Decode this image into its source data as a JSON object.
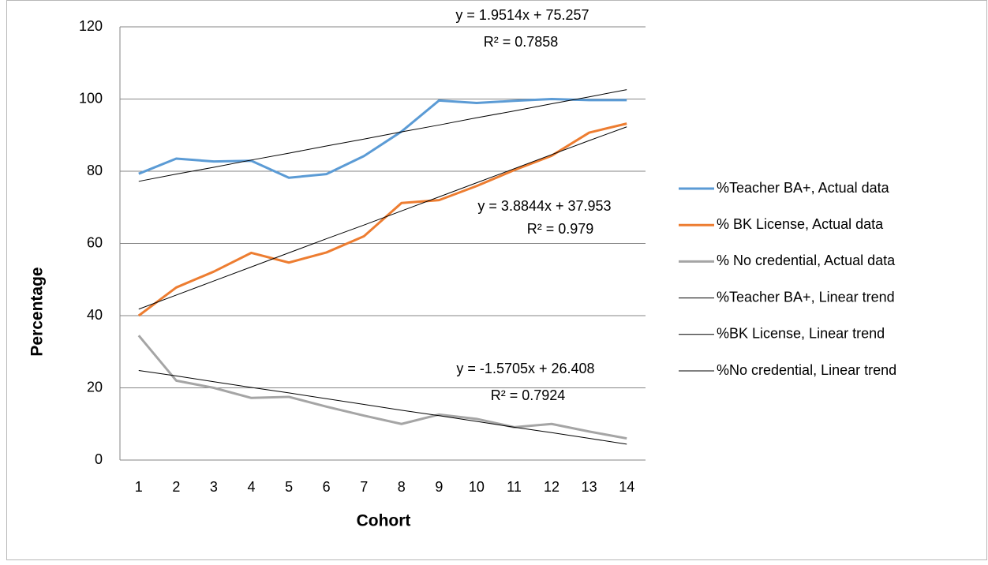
{
  "chart_data": {
    "type": "line",
    "x_label": "Cohort",
    "y_label": "Percentage",
    "categories": [
      "1",
      "2",
      "3",
      "4",
      "5",
      "6",
      "7",
      "8",
      "9",
      "10",
      "11",
      "12",
      "13",
      "14"
    ],
    "ylim": [
      0,
      120
    ],
    "yticks": [
      0,
      20,
      40,
      60,
      80,
      100,
      120
    ],
    "grid": true,
    "legend": "right",
    "series": [
      {
        "name": "%Teacher BA+, Actual data",
        "color": "#5b9bd5",
        "width": 3,
        "values": [
          79.3,
          83.5,
          82.7,
          82.9,
          78.2,
          79.2,
          84.2,
          91,
          99.6,
          98.9,
          99.5,
          100,
          99.7,
          99.7
        ]
      },
      {
        "name": "% BK License, Actual data",
        "color": "#ed7d31",
        "width": 3,
        "values": [
          40,
          47.8,
          52.2,
          57.4,
          54.7,
          57.5,
          62,
          71.2,
          72,
          75.9,
          80.3,
          84.3,
          90.7,
          93.2
        ]
      },
      {
        "name": "% No credential, Actual data",
        "color": "#a5a5a5",
        "width": 3,
        "values": [
          34.5,
          22,
          20,
          17.2,
          17.5,
          14.8,
          12.3,
          10,
          12.6,
          11.4,
          9.1,
          10,
          7.9,
          6
        ]
      },
      {
        "name": "%Teacher BA+, Linear trend",
        "color": "#000000",
        "width": 1,
        "values": [
          77.2,
          79.2,
          81.1,
          83.1,
          85.0,
          87.0,
          88.9,
          90.9,
          92.8,
          94.8,
          96.7,
          98.7,
          100.6,
          102.6
        ]
      },
      {
        "name": "%BK License, Linear trend",
        "color": "#000000",
        "width": 1,
        "values": [
          41.8,
          45.7,
          49.6,
          53.5,
          57.4,
          61.3,
          65.1,
          69.0,
          72.9,
          76.8,
          80.7,
          84.6,
          88.5,
          92.3
        ]
      },
      {
        "name": "%No credential, Linear trend",
        "color": "#000000",
        "width": 1,
        "values": [
          24.8,
          23.3,
          21.7,
          20.1,
          18.6,
          17.0,
          15.4,
          13.8,
          12.3,
          10.7,
          9.1,
          7.6,
          6.0,
          4.4
        ]
      }
    ],
    "annotations": [
      [
        "y = 1.9514x + 75.257",
        "R² = 0.7858"
      ],
      [
        "y = 3.8844x + 37.953",
        "R² = 0.979"
      ],
      [
        "y = -1.5705x + 26.408",
        "R² = 0.7924"
      ]
    ]
  }
}
